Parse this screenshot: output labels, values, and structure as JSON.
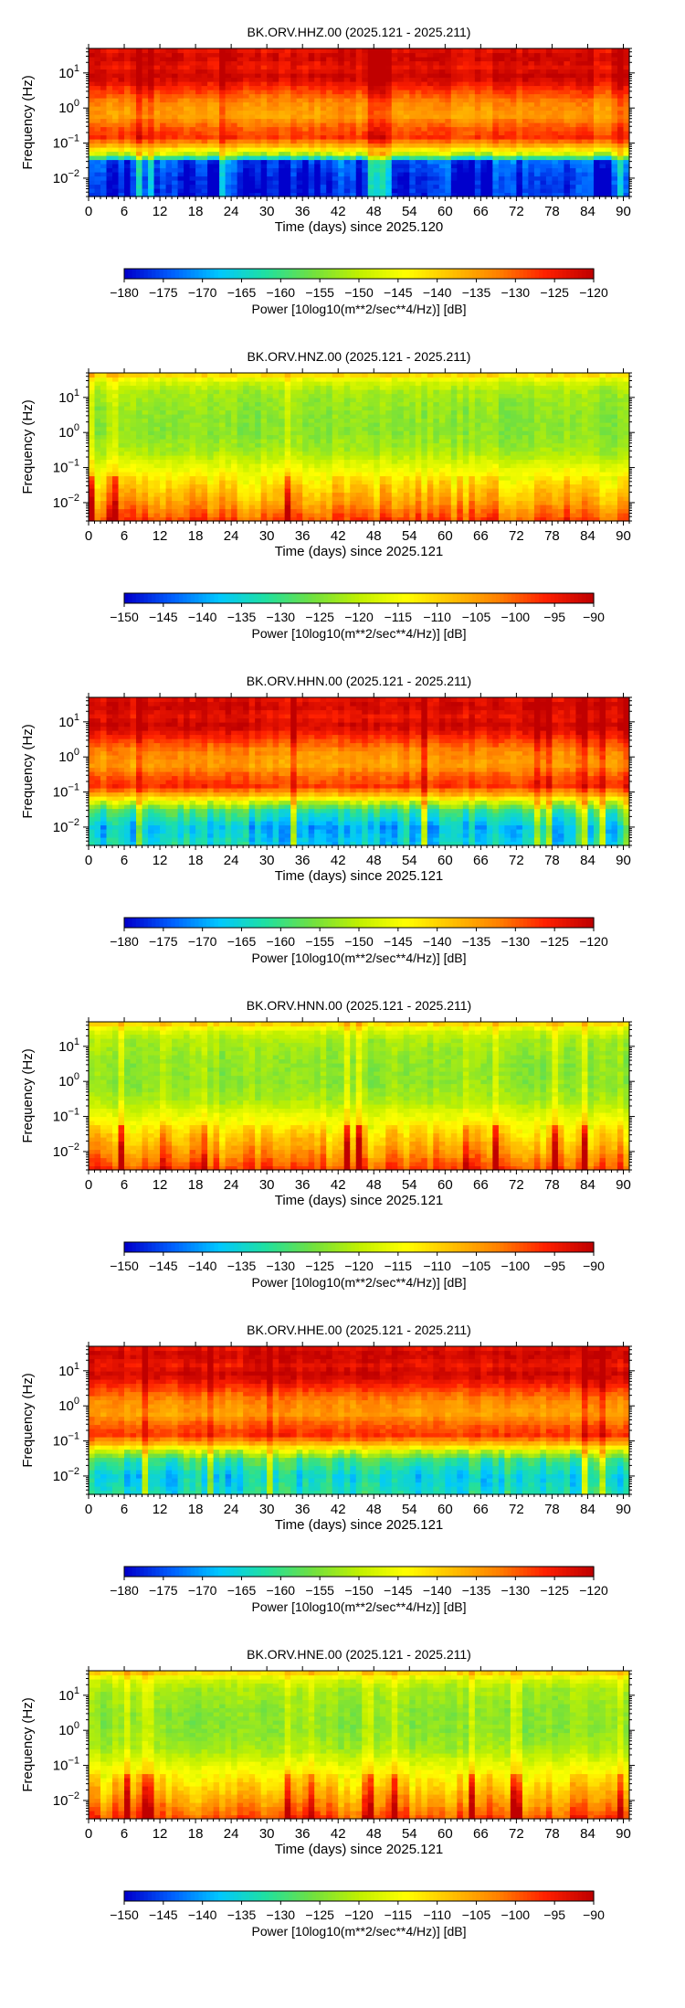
{
  "chart_data": [
    {
      "type": "heatmap",
      "title": "BK.ORV.HHZ.00 (2025.121 - 2025.211)",
      "xlabel": "Time (days) since 2025.120",
      "ylabel": "Frequency (Hz)",
      "xlim": [
        0,
        91
      ],
      "xticks": [
        "0",
        "6",
        "12",
        "18",
        "24",
        "30",
        "36",
        "42",
        "48",
        "54",
        "60",
        "66",
        "72",
        "78",
        "84",
        "90"
      ],
      "ylim": [
        0.003,
        50
      ],
      "yscale": "log",
      "yticks": [
        {
          "base": "10",
          "exp": "1",
          "value": 10
        },
        {
          "base": "10",
          "exp": "0",
          "value": 1
        },
        {
          "base": "10",
          "exp": "−1",
          "value": 0.1
        },
        {
          "base": "10",
          "exp": "−2",
          "value": 0.01
        }
      ],
      "colorbar": {
        "label": "Power [10log10(m**2/sec**4/Hz)] [dB]",
        "range": [
          -180,
          -120
        ],
        "ticks": [
          "−180",
          "−175",
          "−170",
          "−165",
          "−160",
          "−155",
          "−150",
          "−145",
          "−140",
          "−135",
          "−130",
          "−125",
          "−120"
        ]
      },
      "profile": [
        [
          50,
          -124
        ],
        [
          30,
          -121
        ],
        [
          15,
          -124
        ],
        [
          8,
          -121
        ],
        [
          3,
          -128
        ],
        [
          1.5,
          -133
        ],
        [
          0.6,
          -135
        ],
        [
          0.3,
          -130
        ],
        [
          0.15,
          -127
        ],
        [
          0.08,
          -138
        ],
        [
          0.05,
          -150
        ],
        [
          0.03,
          -175
        ],
        [
          0.01,
          -178
        ],
        [
          0.003,
          -178
        ]
      ]
    },
    {
      "type": "heatmap",
      "title": "BK.ORV.HNZ.00 (2025.121 - 2025.211)",
      "xlabel": "Time (days) since 2025.121",
      "ylabel": "Frequency (Hz)",
      "xlim": [
        0,
        91
      ],
      "xticks": [
        "0",
        "6",
        "12",
        "18",
        "24",
        "30",
        "36",
        "42",
        "48",
        "54",
        "60",
        "66",
        "72",
        "78",
        "84",
        "90"
      ],
      "ylim": [
        0.003,
        50
      ],
      "yscale": "log",
      "yticks": [
        {
          "base": "10",
          "exp": "1",
          "value": 10
        },
        {
          "base": "10",
          "exp": "0",
          "value": 1
        },
        {
          "base": "10",
          "exp": "−1",
          "value": 0.1
        },
        {
          "base": "10",
          "exp": "−2",
          "value": 0.01
        }
      ],
      "colorbar": {
        "label": "Power [10log10(m**2/sec**4/Hz)] [dB]",
        "range": [
          -150,
          -90
        ],
        "ticks": [
          "−150",
          "−145",
          "−140",
          "−135",
          "−130",
          "−125",
          "−120",
          "−115",
          "−110",
          "−105",
          "−100",
          "−95",
          "−90"
        ]
      },
      "profile": [
        [
          50,
          -108
        ],
        [
          30,
          -118
        ],
        [
          15,
          -122
        ],
        [
          8,
          -123
        ],
        [
          3,
          -124
        ],
        [
          1,
          -124
        ],
        [
          0.3,
          -122
        ],
        [
          0.1,
          -116
        ],
        [
          0.03,
          -110
        ],
        [
          0.01,
          -105
        ],
        [
          0.003,
          -98
        ]
      ]
    },
    {
      "type": "heatmap",
      "title": "BK.ORV.HHN.00 (2025.121 - 2025.211)",
      "xlabel": "Time (days) since 2025.121",
      "ylabel": "Frequency (Hz)",
      "xlim": [
        0,
        91
      ],
      "xticks": [
        "0",
        "6",
        "12",
        "18",
        "24",
        "30",
        "36",
        "42",
        "48",
        "54",
        "60",
        "66",
        "72",
        "78",
        "84",
        "90"
      ],
      "ylim": [
        0.003,
        50
      ],
      "yscale": "log",
      "yticks": [
        {
          "base": "10",
          "exp": "1",
          "value": 10
        },
        {
          "base": "10",
          "exp": "0",
          "value": 1
        },
        {
          "base": "10",
          "exp": "−1",
          "value": 0.1
        },
        {
          "base": "10",
          "exp": "−2",
          "value": 0.01
        }
      ],
      "colorbar": {
        "label": "Power [10log10(m**2/sec**4/Hz)] [dB]",
        "range": [
          -180,
          -120
        ],
        "ticks": [
          "−180",
          "−175",
          "−170",
          "−165",
          "−160",
          "−155",
          "−150",
          "−145",
          "−140",
          "−135",
          "−130",
          "−125",
          "−120"
        ]
      },
      "profile": [
        [
          50,
          -124
        ],
        [
          30,
          -121
        ],
        [
          15,
          -124
        ],
        [
          8,
          -121
        ],
        [
          3,
          -128
        ],
        [
          1.5,
          -133
        ],
        [
          0.6,
          -135
        ],
        [
          0.3,
          -130
        ],
        [
          0.15,
          -127
        ],
        [
          0.08,
          -138
        ],
        [
          0.05,
          -150
        ],
        [
          0.03,
          -160
        ],
        [
          0.01,
          -168
        ],
        [
          0.003,
          -165
        ]
      ]
    },
    {
      "type": "heatmap",
      "title": "BK.ORV.HNN.00 (2025.121 - 2025.211)",
      "xlabel": "Time (days) since 2025.121",
      "ylabel": "Frequency (Hz)",
      "xlim": [
        0,
        91
      ],
      "xticks": [
        "0",
        "6",
        "12",
        "18",
        "24",
        "30",
        "36",
        "42",
        "48",
        "54",
        "60",
        "66",
        "72",
        "78",
        "84",
        "90"
      ],
      "ylim": [
        0.003,
        50
      ],
      "yscale": "log",
      "yticks": [
        {
          "base": "10",
          "exp": "1",
          "value": 10
        },
        {
          "base": "10",
          "exp": "0",
          "value": 1
        },
        {
          "base": "10",
          "exp": "−1",
          "value": 0.1
        },
        {
          "base": "10",
          "exp": "−2",
          "value": 0.01
        }
      ],
      "colorbar": {
        "label": "Power [10log10(m**2/sec**4/Hz)] [dB]",
        "range": [
          -150,
          -90
        ],
        "ticks": [
          "−150",
          "−145",
          "−140",
          "−135",
          "−130",
          "−125",
          "−120",
          "−115",
          "−110",
          "−105",
          "−100",
          "−95",
          "−90"
        ]
      },
      "profile": [
        [
          50,
          -108
        ],
        [
          30,
          -118
        ],
        [
          15,
          -122
        ],
        [
          8,
          -123
        ],
        [
          3,
          -124
        ],
        [
          1,
          -124
        ],
        [
          0.3,
          -122
        ],
        [
          0.1,
          -116
        ],
        [
          0.03,
          -110
        ],
        [
          0.01,
          -105
        ],
        [
          0.003,
          -98
        ]
      ]
    },
    {
      "type": "heatmap",
      "title": "BK.ORV.HHE.00 (2025.121 - 2025.211)",
      "xlabel": "Time (days) since 2025.121",
      "ylabel": "Frequency (Hz)",
      "xlim": [
        0,
        91
      ],
      "xticks": [
        "0",
        "6",
        "12",
        "18",
        "24",
        "30",
        "36",
        "42",
        "48",
        "54",
        "60",
        "66",
        "72",
        "78",
        "84",
        "90"
      ],
      "ylim": [
        0.003,
        50
      ],
      "yscale": "log",
      "yticks": [
        {
          "base": "10",
          "exp": "1",
          "value": 10
        },
        {
          "base": "10",
          "exp": "0",
          "value": 1
        },
        {
          "base": "10",
          "exp": "−1",
          "value": 0.1
        },
        {
          "base": "10",
          "exp": "−2",
          "value": 0.01
        }
      ],
      "colorbar": {
        "label": "Power [10log10(m**2/sec**4/Hz)] [dB]",
        "range": [
          -180,
          -120
        ],
        "ticks": [
          "−180",
          "−175",
          "−170",
          "−165",
          "−160",
          "−155",
          "−150",
          "−145",
          "−140",
          "−135",
          "−130",
          "−125",
          "−120"
        ]
      },
      "profile": [
        [
          50,
          -124
        ],
        [
          30,
          -121
        ],
        [
          15,
          -124
        ],
        [
          8,
          -121
        ],
        [
          3,
          -128
        ],
        [
          1.5,
          -133
        ],
        [
          0.6,
          -135
        ],
        [
          0.3,
          -130
        ],
        [
          0.15,
          -127
        ],
        [
          0.08,
          -138
        ],
        [
          0.05,
          -150
        ],
        [
          0.03,
          -160
        ],
        [
          0.01,
          -166
        ],
        [
          0.003,
          -163
        ]
      ]
    },
    {
      "type": "heatmap",
      "title": "BK.ORV.HNE.00 (2025.121 - 2025.211)",
      "xlabel": "Time (days) since 2025.121",
      "ylabel": "Frequency (Hz)",
      "xlim": [
        0,
        91
      ],
      "xticks": [
        "0",
        "6",
        "12",
        "18",
        "24",
        "30",
        "36",
        "42",
        "48",
        "54",
        "60",
        "66",
        "72",
        "78",
        "84",
        "90"
      ],
      "ylim": [
        0.003,
        50
      ],
      "yscale": "log",
      "yticks": [
        {
          "base": "10",
          "exp": "1",
          "value": 10
        },
        {
          "base": "10",
          "exp": "0",
          "value": 1
        },
        {
          "base": "10",
          "exp": "−1",
          "value": 0.1
        },
        {
          "base": "10",
          "exp": "−2",
          "value": 0.01
        }
      ],
      "colorbar": {
        "label": "Power [10log10(m**2/sec**4/Hz)] [dB]",
        "range": [
          -150,
          -90
        ],
        "ticks": [
          "−150",
          "−145",
          "−140",
          "−135",
          "−130",
          "−125",
          "−120",
          "−115",
          "−110",
          "−105",
          "−100",
          "−95",
          "−90"
        ]
      },
      "profile": [
        [
          50,
          -108
        ],
        [
          30,
          -118
        ],
        [
          15,
          -122
        ],
        [
          8,
          -123
        ],
        [
          3,
          -124
        ],
        [
          1,
          -124
        ],
        [
          0.3,
          -122
        ],
        [
          0.1,
          -116
        ],
        [
          0.03,
          -110
        ],
        [
          0.01,
          -105
        ],
        [
          0.003,
          -98
        ]
      ]
    }
  ],
  "colormap": [
    "#0000cc",
    "#0060ff",
    "#00c8ff",
    "#20e0a0",
    "#70e040",
    "#c0f000",
    "#ffff00",
    "#ffc000",
    "#ff8000",
    "#ff2000",
    "#c00000"
  ]
}
